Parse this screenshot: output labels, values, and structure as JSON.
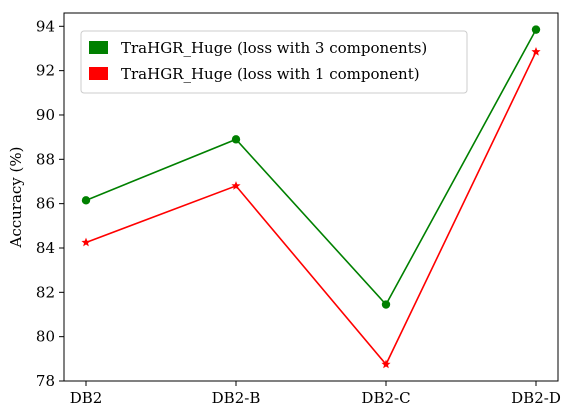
{
  "chart_data": {
    "type": "line",
    "categories": [
      "DB2",
      "DB2-B",
      "DB2-C",
      "DB2-D"
    ],
    "xlabel": "",
    "ylabel": "Accuracy (%)",
    "ylim": [
      78,
      94.6
    ],
    "yticks": [
      78,
      80,
      82,
      84,
      86,
      88,
      90,
      92,
      94
    ],
    "grid": false,
    "legend_position": "top-left",
    "series": [
      {
        "name": "TraHGR_Huge (loss with 3 components)",
        "values": [
          86.15,
          88.9,
          81.45,
          93.85
        ],
        "color": "#008000",
        "marker": "circle"
      },
      {
        "name": "TraHGR_Huge (loss with 1 component)",
        "values": [
          84.25,
          86.8,
          78.75,
          92.85
        ],
        "color": "#ff0000",
        "marker": "star"
      }
    ]
  }
}
